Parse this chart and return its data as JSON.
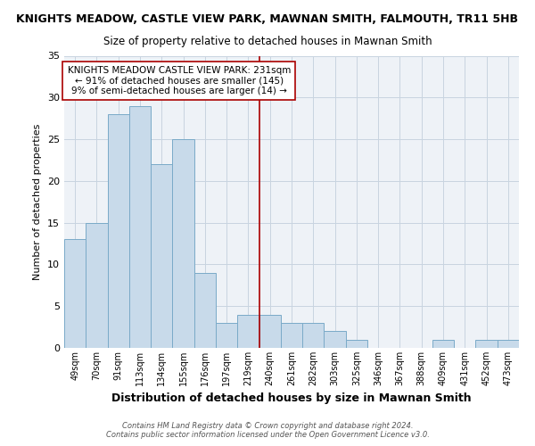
{
  "title": "KNIGHTS MEADOW, CASTLE VIEW PARK, MAWNAN SMITH, FALMOUTH, TR11 5HB",
  "subtitle": "Size of property relative to detached houses in Mawnan Smith",
  "xlabel": "Distribution of detached houses by size in Mawnan Smith",
  "ylabel": "Number of detached properties",
  "bar_labels": [
    "49sqm",
    "70sqm",
    "91sqm",
    "113sqm",
    "134sqm",
    "155sqm",
    "176sqm",
    "197sqm",
    "219sqm",
    "240sqm",
    "261sqm",
    "282sqm",
    "303sqm",
    "325sqm",
    "346sqm",
    "367sqm",
    "388sqm",
    "409sqm",
    "431sqm",
    "452sqm",
    "473sqm"
  ],
  "bar_values": [
    13,
    15,
    28,
    29,
    22,
    25,
    9,
    3,
    4,
    4,
    3,
    3,
    2,
    1,
    0,
    0,
    0,
    1,
    0,
    1,
    1
  ],
  "bar_color": "#c8daea",
  "bar_edge_color": "#7aaac8",
  "ylim": [
    0,
    35
  ],
  "yticks": [
    0,
    5,
    10,
    15,
    20,
    25,
    30,
    35
  ],
  "grid_color": "#c8d4e0",
  "vline_color": "#aa0000",
  "annotation_text": "KNIGHTS MEADOW CASTLE VIEW PARK: 231sqm\n← 91% of detached houses are smaller (145)\n9% of semi-detached houses are larger (14) →",
  "annotation_box_facecolor": "#ffffff",
  "annotation_box_edgecolor": "#aa0000",
  "footer_line1": "Contains HM Land Registry data © Crown copyright and database right 2024.",
  "footer_line2": "Contains public sector information licensed under the Open Government Licence v3.0.",
  "bg_color": "#ffffff",
  "plot_bg_color": "#eef2f7"
}
